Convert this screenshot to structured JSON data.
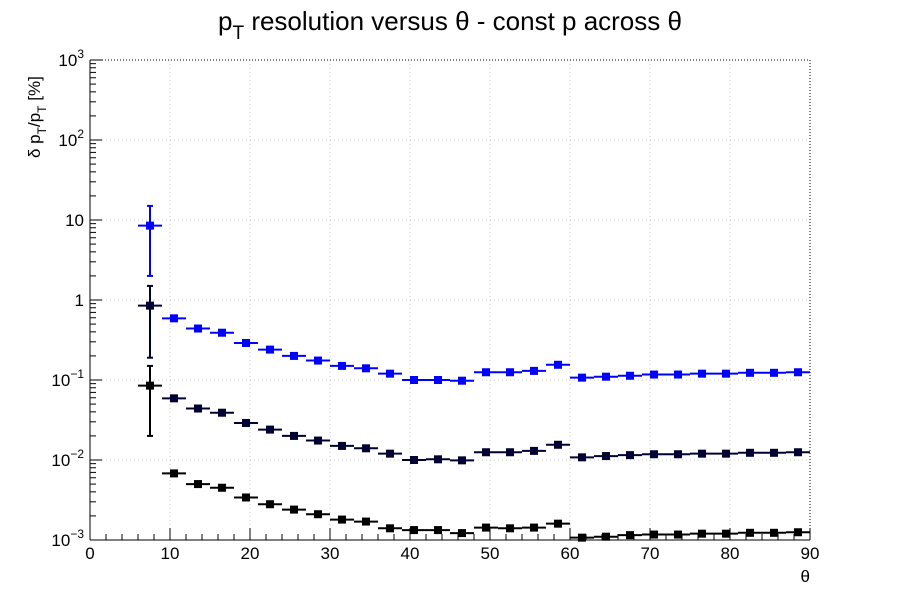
{
  "chart_data": {
    "type": "scatter",
    "title": "p",
    "title_sub": "T",
    "title_rest": " resolution versus θ - const p across θ",
    "xlabel": "θ",
    "ylabel": {
      "pre": "δ p",
      "sub1": "T",
      "mid": "/p",
      "sub2": "T",
      "post": " [%]"
    },
    "xlim": [
      0,
      90
    ],
    "ylim": [
      0.001,
      1000
    ],
    "yscale": "log",
    "grid": true,
    "x_ticks": [
      "0",
      "10",
      "20",
      "30",
      "40",
      "50",
      "60",
      "70",
      "80",
      "90"
    ],
    "y_ticks": [
      {
        "value": 1000,
        "base": "10",
        "exp": "3"
      },
      {
        "value": 100,
        "base": "10",
        "exp": "2"
      },
      {
        "value": 10,
        "base": "10",
        "exp": ""
      },
      {
        "value": 1,
        "base": "1",
        "exp": ""
      },
      {
        "value": 0.1,
        "base": "10",
        "exp": "−1"
      },
      {
        "value": 0.01,
        "base": "10",
        "exp": "−2"
      },
      {
        "value": 0.001,
        "base": "10",
        "exp": "−3"
      }
    ],
    "x": [
      7.5,
      10.5,
      13.5,
      16.5,
      19.5,
      22.5,
      25.5,
      28.5,
      31.5,
      34.5,
      37.5,
      40.5,
      43.5,
      46.5,
      49.5,
      52.5,
      55.5,
      58.5,
      61.5,
      64.5,
      67.5,
      70.5,
      73.5,
      76.5,
      79.5,
      82.5,
      85.5,
      88.5
    ],
    "x_half_width": 1.5,
    "series": [
      {
        "color": "#0000ff",
        "values": [
          8.5,
          0.59,
          0.44,
          0.39,
          0.29,
          0.24,
          0.2,
          0.175,
          0.15,
          0.14,
          0.12,
          0.1,
          0.1,
          0.098,
          0.125,
          0.125,
          0.13,
          0.155,
          0.107,
          0.11,
          0.113,
          0.117,
          0.117,
          0.12,
          0.12,
          0.123,
          0.123,
          0.125
        ],
        "err_low": [
          2.0,
          null,
          null,
          null,
          null,
          null,
          null,
          null,
          null,
          null,
          null,
          null,
          null,
          null,
          null,
          null,
          null,
          null,
          null,
          null,
          null,
          null,
          null,
          null,
          null,
          null,
          null,
          null
        ],
        "err_high": [
          15.0,
          null,
          null,
          null,
          null,
          null,
          null,
          null,
          null,
          null,
          null,
          null,
          null,
          null,
          null,
          null,
          null,
          null,
          null,
          null,
          null,
          null,
          null,
          null,
          null,
          null,
          null,
          null
        ]
      },
      {
        "color": "#000033",
        "values": [
          0.85,
          0.059,
          0.044,
          0.039,
          0.029,
          0.024,
          0.02,
          0.0175,
          0.015,
          0.014,
          0.012,
          0.01,
          0.0102,
          0.0099,
          0.0125,
          0.0125,
          0.013,
          0.0155,
          0.0108,
          0.0112,
          0.0115,
          0.0118,
          0.0118,
          0.012,
          0.012,
          0.0123,
          0.0123,
          0.0125
        ],
        "err_low": [
          0.19,
          null,
          null,
          null,
          null,
          null,
          null,
          null,
          null,
          null,
          null,
          null,
          null,
          null,
          null,
          null,
          null,
          null,
          null,
          null,
          null,
          null,
          null,
          null,
          null,
          null,
          null,
          null
        ],
        "err_high": [
          1.5,
          null,
          null,
          null,
          null,
          null,
          null,
          null,
          null,
          null,
          null,
          null,
          null,
          null,
          null,
          null,
          null,
          null,
          null,
          null,
          null,
          null,
          null,
          null,
          null,
          null,
          null,
          null
        ]
      },
      {
        "color": "#000000",
        "values": [
          0.085,
          0.0068,
          0.005,
          0.0045,
          0.0034,
          0.0028,
          0.0024,
          0.0021,
          0.0018,
          0.0017,
          0.0014,
          0.00133,
          0.00133,
          0.00122,
          0.00143,
          0.0014,
          0.00143,
          0.0016,
          0.00107,
          0.0011,
          0.00115,
          0.00117,
          0.00117,
          0.0012,
          0.0012,
          0.00123,
          0.00123,
          0.00125
        ],
        "err_low": [
          0.02,
          null,
          null,
          null,
          null,
          null,
          null,
          null,
          null,
          null,
          null,
          null,
          null,
          null,
          null,
          null,
          null,
          null,
          null,
          null,
          null,
          null,
          null,
          null,
          null,
          null,
          null,
          null
        ],
        "err_high": [
          0.15,
          null,
          null,
          null,
          null,
          null,
          null,
          null,
          null,
          null,
          null,
          null,
          null,
          null,
          null,
          null,
          null,
          null,
          null,
          null,
          null,
          null,
          null,
          null,
          null,
          null,
          null,
          null
        ]
      }
    ]
  }
}
